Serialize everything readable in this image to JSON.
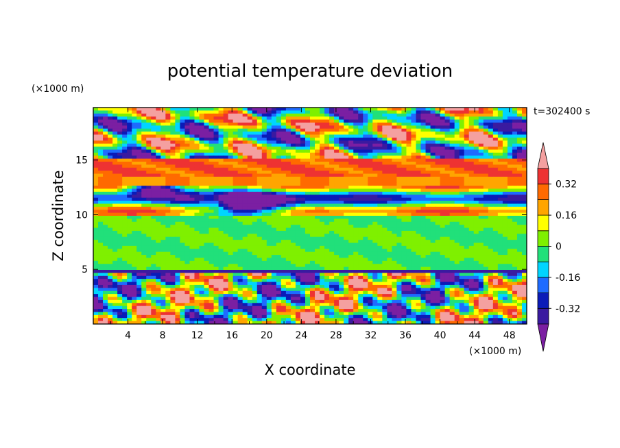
{
  "chart_data": {
    "type": "heatmap",
    "title": "potential temperature deviation",
    "xlabel": "X coordinate",
    "ylabel": "Z coordinate",
    "x_unit": "(×1000 m)",
    "y_unit": "(×1000 m)",
    "time_label": "t=302400 s",
    "xlim": [
      0,
      50
    ],
    "ylim": [
      0,
      19.8
    ],
    "x_ticks": [
      4,
      8,
      12,
      16,
      20,
      24,
      28,
      32,
      36,
      40,
      44,
      48
    ],
    "y_ticks": [
      5,
      10,
      15
    ],
    "colorbar": {
      "levels": [
        -0.4,
        -0.32,
        -0.24,
        -0.16,
        -0.08,
        0,
        0.08,
        0.16,
        0.24,
        0.32,
        0.4
      ],
      "colors": [
        "#7b1fa2",
        "#3a1aa0",
        "#0b1bb8",
        "#1e6bff",
        "#00d5ff",
        "#21e07a",
        "#7ff000",
        "#ffff00",
        "#ffa500",
        "#ff6a00",
        "#ee3232",
        "#f4a0a0"
      ],
      "labels": [
        "0.32",
        "0.16",
        "0",
        "-0.16",
        "-0.32"
      ],
      "label_values": [
        0.32,
        0.16,
        0,
        -0.16,
        -0.32
      ],
      "extend": "both"
    }
  }
}
